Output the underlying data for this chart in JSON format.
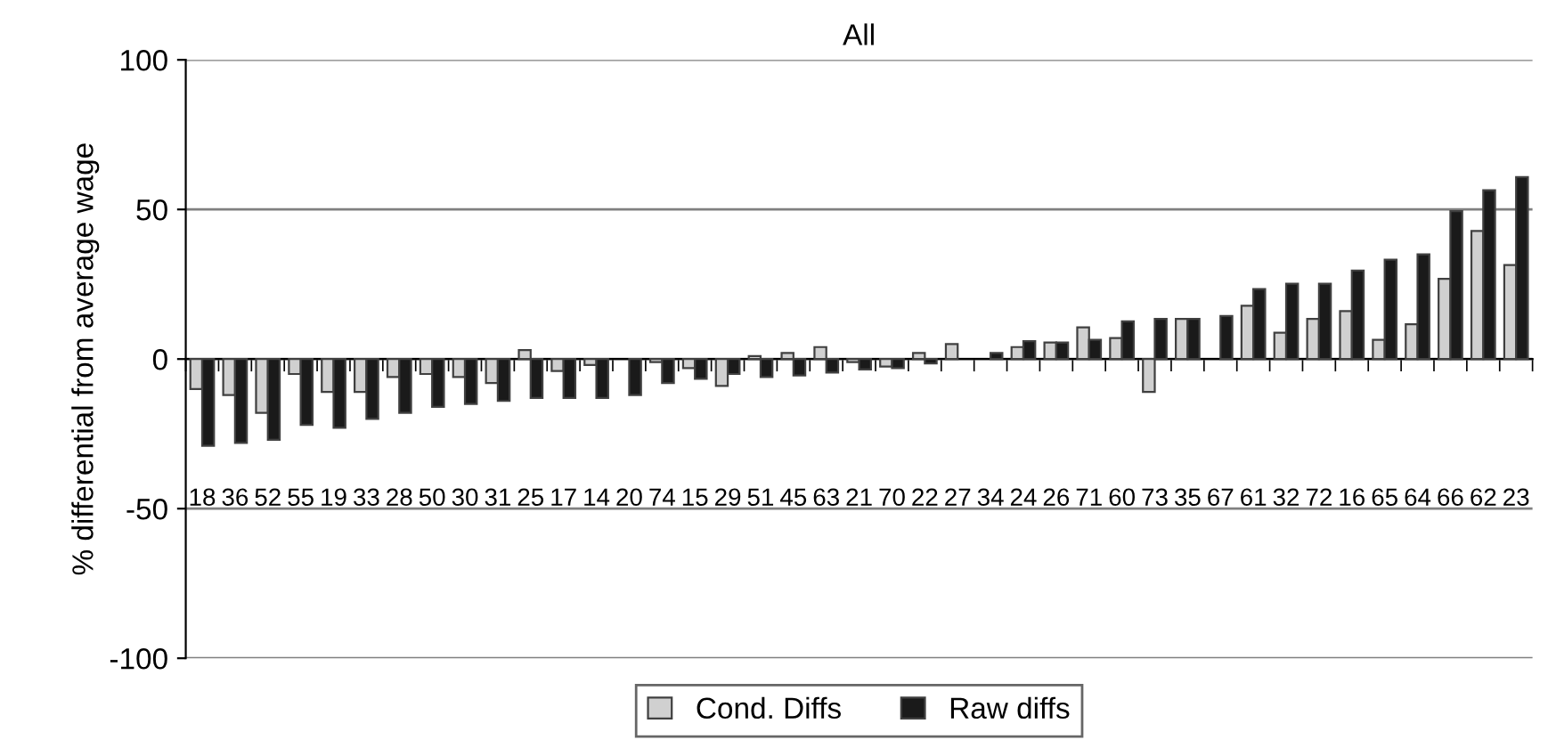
{
  "chart_data": {
    "type": "bar",
    "title": "All",
    "ylabel": "% differential from average wage",
    "categories": [
      "18",
      "36",
      "52",
      "55",
      "19",
      "33",
      "28",
      "50",
      "30",
      "31",
      "25",
      "17",
      "14",
      "20",
      "74",
      "15",
      "29",
      "51",
      "45",
      "63",
      "21",
      "70",
      "22",
      "27",
      "34",
      "24",
      "26",
      "71",
      "60",
      "73",
      "35",
      "67",
      "61",
      "32",
      "72",
      "16",
      "65",
      "64",
      "66",
      "62",
      "23"
    ],
    "series": [
      {
        "name": "Cond. Diffs",
        "color": "#d0d0d0",
        "values": [
          -10,
          -12,
          -18,
          -5,
          -11,
          -11,
          -6,
          -5,
          -6,
          -8,
          3,
          -4,
          -2,
          0,
          -1,
          -3,
          -9,
          1,
          2,
          4,
          -1,
          -2.5,
          2,
          5,
          0,
          4,
          5.5,
          10.6,
          7,
          -11,
          13.4,
          0,
          17.8,
          8.8,
          13.4,
          16,
          6.4,
          11.6,
          26.8,
          42.8,
          31.4
        ]
      },
      {
        "name": "Raw diffs",
        "color": "#1a1a1a",
        "values": [
          -29,
          -28,
          -27,
          -22,
          -23,
          -20,
          -18,
          -16,
          -15,
          -14,
          -13,
          -13,
          -13,
          -12,
          -8,
          -6.6,
          -5,
          -6,
          -5.5,
          -4.5,
          -3.5,
          -3,
          -1.5,
          0,
          2,
          6,
          5.5,
          6.4,
          12.6,
          13.4,
          13.4,
          14.4,
          23.4,
          25.2,
          25.2,
          29.6,
          33.2,
          35,
          49.4,
          56.4,
          60.8
        ]
      }
    ],
    "ylim": [
      -100,
      100
    ],
    "yticks": [
      -100,
      -50,
      0,
      50,
      100
    ],
    "grid": "y",
    "legend": "bottom"
  }
}
